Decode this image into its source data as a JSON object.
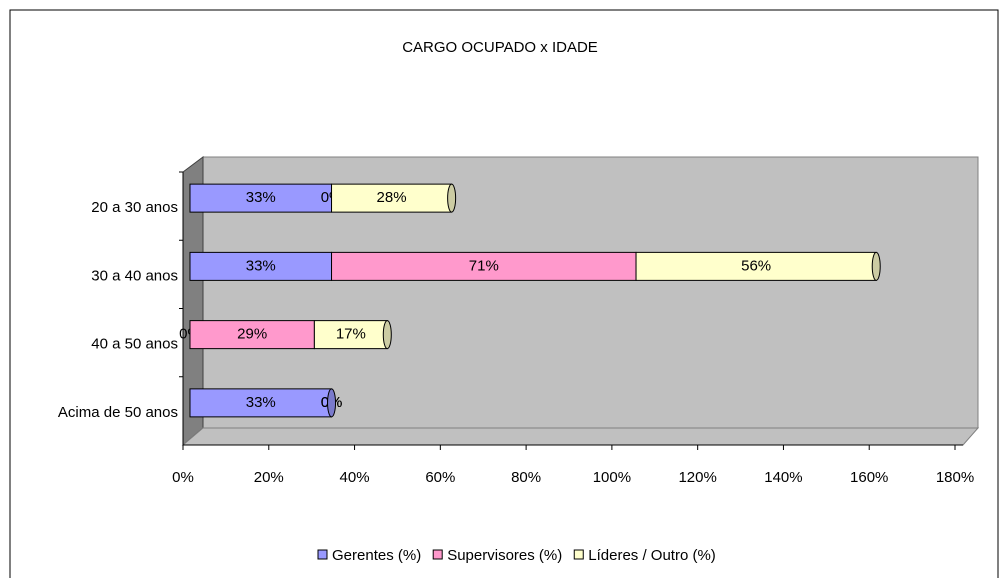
{
  "chart_data": {
    "type": "stacked-bar-horizontal",
    "title": "CARGO OCUPADO x IDADE",
    "categories": [
      "20 a 30 anos",
      "30 a 40 anos",
      "40 a 50 anos",
      "Acima de 50 anos"
    ],
    "series": [
      {
        "name": "Gerentes (%)",
        "color": "#9999ff",
        "values": [
          33,
          33,
          0,
          33
        ],
        "value_labels": [
          "33%",
          "33%",
          "0%",
          "33%"
        ]
      },
      {
        "name": "Supervisores (%)",
        "color": "#ff99cc",
        "values": [
          0,
          71,
          29,
          0
        ],
        "value_labels": [
          "0%",
          "71%",
          "29%",
          "0%"
        ]
      },
      {
        "name": "Líderes / Outro (%)",
        "color": "#ffffcc",
        "values": [
          28,
          56,
          17,
          0
        ],
        "value_labels": [
          "28%",
          "56%",
          "17%",
          "0%"
        ]
      }
    ],
    "xlim": [
      0,
      180
    ],
    "xticks": [
      {
        "value": 0,
        "label": "0%"
      },
      {
        "value": 20,
        "label": "20%"
      },
      {
        "value": 40,
        "label": "40%"
      },
      {
        "value": 60,
        "label": "60%"
      },
      {
        "value": 80,
        "label": "80%"
      },
      {
        "value": 100,
        "label": "100%"
      },
      {
        "value": 120,
        "label": "120%"
      },
      {
        "value": 140,
        "label": "140%"
      },
      {
        "value": 160,
        "label": "160%"
      },
      {
        "value": 180,
        "label": "180%"
      }
    ],
    "legend": "bottom"
  }
}
